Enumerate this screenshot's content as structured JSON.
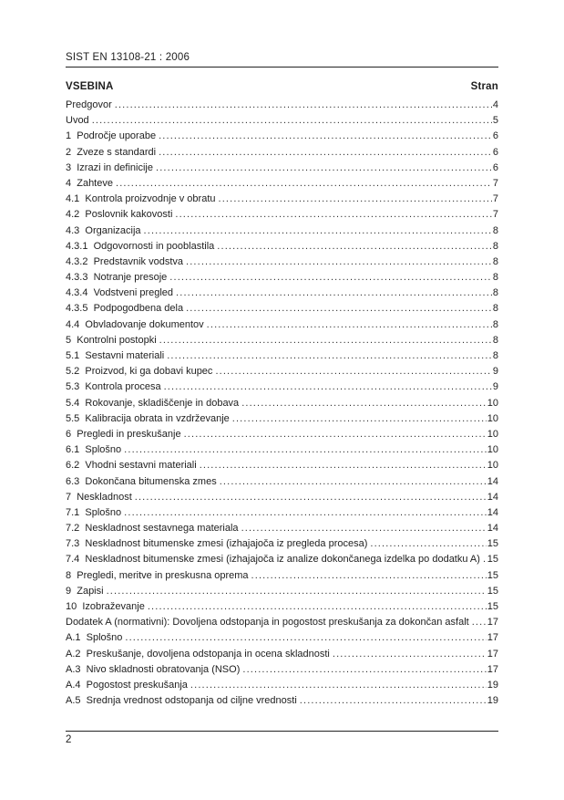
{
  "header": {
    "reference": "SIST EN 13108-21 : 2006"
  },
  "toc": {
    "heading": "VSEBINA",
    "page_column_heading": "Stran",
    "entries": [
      {
        "label": "Predgovor",
        "page": "4"
      },
      {
        "label": "Uvod",
        "page": "5"
      },
      {
        "label": "1  Področje uporabe",
        "page": "6"
      },
      {
        "label": "2  Zveze s standardi",
        "page": "6"
      },
      {
        "label": "3  Izrazi in definicije",
        "page": "6"
      },
      {
        "label": "4  Zahteve",
        "page": "7"
      },
      {
        "label": "4.1  Kontrola proizvodnje v obratu",
        "page": "7"
      },
      {
        "label": "4.2  Poslovnik kakovosti",
        "page": "7"
      },
      {
        "label": "4.3  Organizacija",
        "page": "8"
      },
      {
        "label": "4.3.1  Odgovornosti in pooblastila",
        "page": "8"
      },
      {
        "label": "4.3.2  Predstavnik vodstva",
        "page": "8"
      },
      {
        "label": "4.3.3  Notranje presoje",
        "page": "8"
      },
      {
        "label": "4.3.4  Vodstveni pregled",
        "page": "8"
      },
      {
        "label": "4.3.5  Podpogodbena dela",
        "page": "8"
      },
      {
        "label": "4.4  Obvladovanje dokumentov",
        "page": "8"
      },
      {
        "label": "5  Kontrolni postopki",
        "page": "8"
      },
      {
        "label": "5.1  Sestavni materiali",
        "page": "8"
      },
      {
        "label": "5.2  Proizvod, ki ga dobavi kupec",
        "page": "9"
      },
      {
        "label": "5.3  Kontrola procesa",
        "page": "9"
      },
      {
        "label": "5.4  Rokovanje, skladiščenje in dobava",
        "page": "10"
      },
      {
        "label": "5.5  Kalibracija obrata in vzdrževanje",
        "page": "10"
      },
      {
        "label": "6  Pregledi in preskušanje",
        "page": "10"
      },
      {
        "label": "6.1  Splošno",
        "page": "10"
      },
      {
        "label": "6.2  Vhodni sestavni materiali",
        "page": "10"
      },
      {
        "label": "6.3  Dokončana bitumenska zmes",
        "page": "14"
      },
      {
        "label": "7  Neskladnost",
        "page": "14"
      },
      {
        "label": "7.1  Splošno",
        "page": "14"
      },
      {
        "label": "7.2  Neskladnost sestavnega materiala",
        "page": "14"
      },
      {
        "label": "7.3  Neskladnost bitumenske zmesi (izhajajoča iz pregleda procesa)",
        "page": "15"
      },
      {
        "label": "7.4  Neskladnost bitumenske zmesi (izhajajoča iz analize dokončanega izdelka po dodatku A)",
        "page": "15"
      },
      {
        "label": "8  Pregledi, meritve in preskusna oprema",
        "page": "15"
      },
      {
        "label": "9  Zapisi",
        "page": "15"
      },
      {
        "label": "10  Izobraževanje",
        "page": "15"
      },
      {
        "label": "Dodatek A (normativni): Dovoljena odstopanja in pogostost preskušanja za dokončan asfalt",
        "page": "17"
      },
      {
        "label": "A.1  Splošno",
        "page": "17"
      },
      {
        "label": "A.2  Preskušanje, dovoljena odstopanja in ocena skladnosti",
        "page": "17"
      },
      {
        "label": "A.3  Nivo skladnosti obratovanja (NSO)",
        "page": "17"
      },
      {
        "label": "A.4  Pogostost preskušanja",
        "page": "19"
      },
      {
        "label": "A.5  Srednja vrednost odstopanja od ciljne vrednosti",
        "page": "19"
      }
    ]
  },
  "footer": {
    "page_number": "2"
  }
}
